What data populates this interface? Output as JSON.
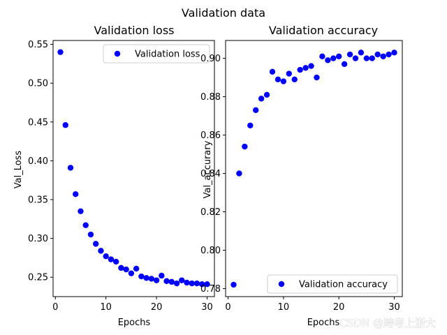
{
  "suptitle": "Validation data",
  "watermark": "CSDN @跨考上浙大",
  "colors": {
    "marker": "#0000ff",
    "axes": "#000000",
    "background": "#ffffff"
  },
  "chart_data": [
    {
      "type": "scatter",
      "title": "Validation loss",
      "xlabel": "Epochs",
      "ylabel": "Val_Loss",
      "legend": {
        "label": "Validation loss",
        "placement": "top-right"
      },
      "xlim": [
        -0.45,
        31.45
      ],
      "ylim": [
        0.225,
        0.555
      ],
      "xticks": [
        0,
        10,
        20,
        30
      ],
      "yticks": [
        0.25,
        0.3,
        0.35,
        0.4,
        0.45,
        0.5,
        0.55
      ],
      "ytick_labels": [
        "0.25",
        "0.30",
        "0.35",
        "0.40",
        "0.45",
        "0.50",
        "0.55"
      ],
      "x": [
        1,
        2,
        3,
        4,
        5,
        6,
        7,
        8,
        9,
        10,
        11,
        12,
        13,
        14,
        15,
        16,
        17,
        18,
        19,
        20,
        21,
        22,
        23,
        24,
        25,
        26,
        27,
        28,
        29,
        30
      ],
      "y": [
        0.54,
        0.446,
        0.391,
        0.357,
        0.335,
        0.317,
        0.305,
        0.293,
        0.284,
        0.277,
        0.273,
        0.27,
        0.262,
        0.26,
        0.255,
        0.261,
        0.251,
        0.249,
        0.248,
        0.246,
        0.252,
        0.245,
        0.244,
        0.242,
        0.246,
        0.243,
        0.242,
        0.242,
        0.241,
        0.241
      ]
    },
    {
      "type": "scatter",
      "title": "Validation accuracy",
      "xlabel": "Epochs",
      "ylabel": "Val_accurary",
      "legend": {
        "label": "Validation accuracy",
        "placement": "bottom-right"
      },
      "xlim": [
        -0.45,
        31.45
      ],
      "ylim": [
        0.7758,
        0.9093
      ],
      "xticks": [
        0,
        10,
        20,
        30
      ],
      "yticks": [
        0.78,
        0.8,
        0.82,
        0.84,
        0.86,
        0.88,
        0.9
      ],
      "ytick_labels": [
        "0.78",
        "0.80",
        "0.82",
        "0.84",
        "0.86",
        "0.88",
        "0.90"
      ],
      "x": [
        1,
        2,
        3,
        4,
        5,
        6,
        7,
        8,
        9,
        10,
        11,
        12,
        13,
        14,
        15,
        16,
        17,
        18,
        19,
        20,
        21,
        22,
        23,
        24,
        25,
        26,
        27,
        28,
        29,
        30
      ],
      "y": [
        0.782,
        0.84,
        0.854,
        0.865,
        0.873,
        0.879,
        0.881,
        0.893,
        0.889,
        0.888,
        0.892,
        0.889,
        0.894,
        0.895,
        0.896,
        0.89,
        0.901,
        0.899,
        0.9,
        0.901,
        0.897,
        0.902,
        0.9,
        0.903,
        0.9,
        0.9,
        0.902,
        0.901,
        0.902,
        0.903
      ]
    }
  ]
}
